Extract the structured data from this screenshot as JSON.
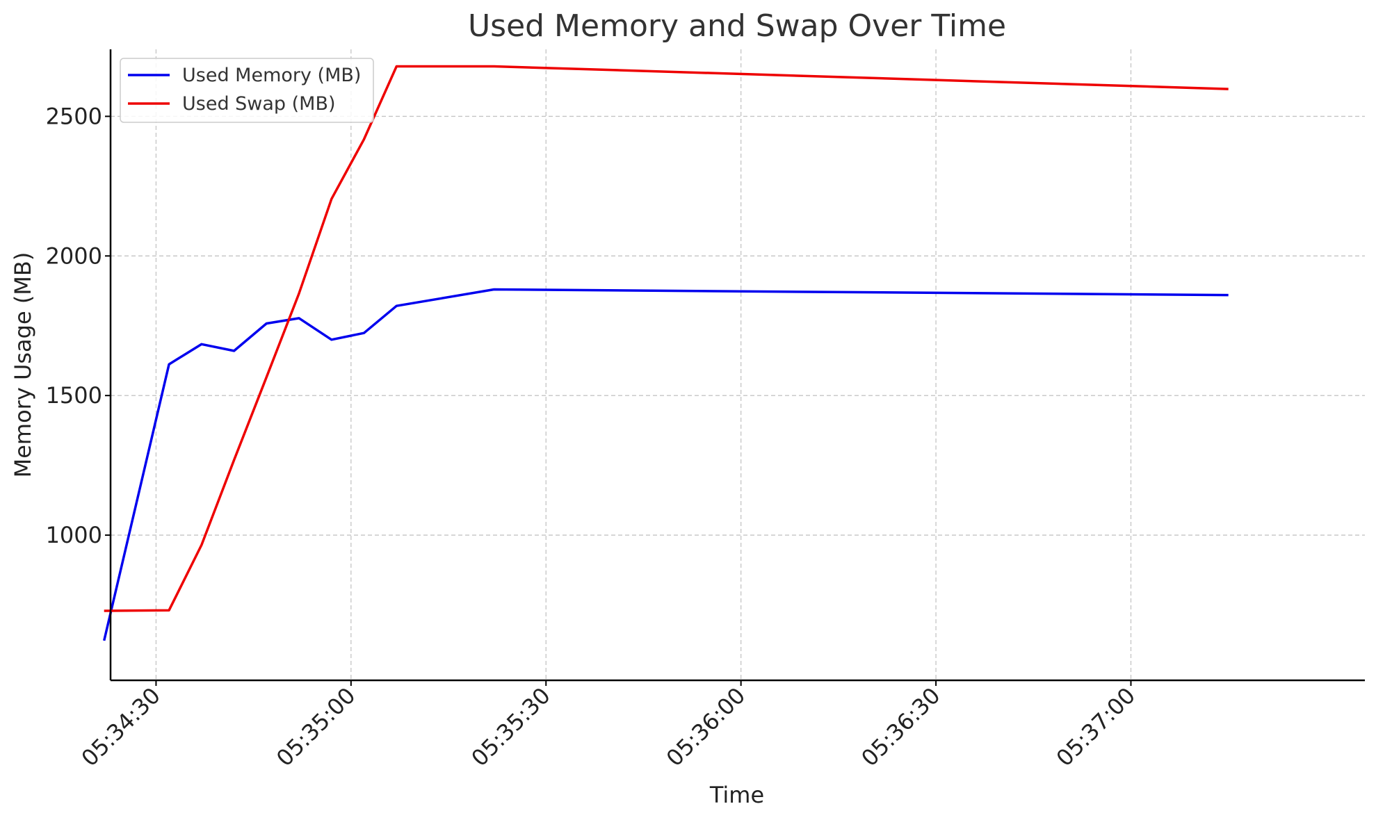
{
  "chart_data": {
    "type": "line",
    "title": "Used Memory and Swap Over Time",
    "xlabel": "Time",
    "ylabel": "Memory Usage (MB)",
    "x_unit": "time (HH:MM:SS)",
    "xlim": [
      "05:34:23",
      "05:37:36"
    ],
    "ylim": [
      480,
      2740
    ],
    "x_ticks": [
      "05:34:30",
      "05:35:00",
      "05:35:30",
      "05:36:00",
      "05:36:30",
      "05:37:00"
    ],
    "y_ticks": [
      1000,
      1500,
      2000,
      2500
    ],
    "grid": true,
    "legend_position": "top-left",
    "x": [
      "05:34:22",
      "05:34:32",
      "05:34:37",
      "05:34:42",
      "05:34:47",
      "05:34:52",
      "05:34:57",
      "05:35:02",
      "05:35:07",
      "05:35:22",
      "05:37:15"
    ],
    "series": [
      {
        "name": "Used Memory (MB)",
        "color": "#0000ee",
        "values": [
          622,
          1612,
          1684,
          1660,
          1758,
          1777,
          1700,
          1724,
          1821,
          1880,
          1860
        ]
      },
      {
        "name": "Used Swap (MB)",
        "color": "#ee0000",
        "values": [
          729,
          731,
          965,
          1269,
          1566,
          1866,
          2204,
          2418,
          2679,
          2679,
          2598
        ]
      }
    ]
  }
}
